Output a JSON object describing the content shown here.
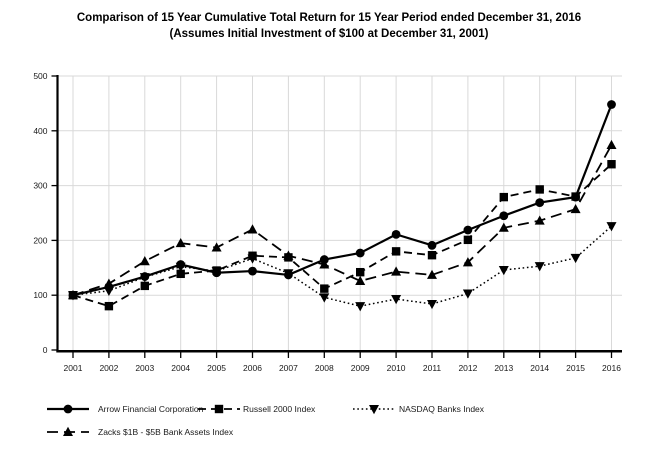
{
  "title": {
    "line1": "Comparison of 15 Year Cumulative Total Return for 15 Year Period ended December 31, 2016",
    "line2": "(Assumes Initial Investment of $100 at December 31, 2001)"
  },
  "chart_data": {
    "type": "line",
    "x": [
      2001,
      2002,
      2003,
      2004,
      2005,
      2006,
      2007,
      2008,
      2009,
      2010,
      2011,
      2012,
      2013,
      2014,
      2015,
      2016
    ],
    "series": [
      {
        "name": "Arrow Financial Corporation",
        "marker": "circle",
        "line": "solid",
        "values": [
          100,
          115,
          134,
          156,
          141,
          144,
          137,
          165,
          177,
          211,
          191,
          219,
          245,
          269,
          279,
          448
        ]
      },
      {
        "name": "Russell 2000 Index",
        "marker": "square",
        "line": "dashed",
        "values": [
          100,
          80,
          117,
          139,
          145,
          172,
          169,
          112,
          142,
          180,
          173,
          201,
          279,
          293,
          280,
          339
        ]
      },
      {
        "name": "NASDAQ Banks Index",
        "marker": "triangle-down",
        "line": "dotted",
        "values": [
          100,
          108,
          133,
          152,
          144,
          167,
          140,
          96,
          80,
          93,
          84,
          103,
          146,
          153,
          168,
          226
        ]
      },
      {
        "name": "Zacks $1B - $5B Bank Assets Index",
        "marker": "triangle-up",
        "line": "long-dash",
        "values": [
          100,
          121,
          162,
          195,
          187,
          220,
          172,
          156,
          126,
          143,
          137,
          160,
          223,
          236,
          257,
          374
        ]
      }
    ],
    "ylim": [
      0,
      500
    ],
    "yticks": [
      0,
      100,
      200,
      300,
      400,
      500
    ],
    "grid": true,
    "legend_position": "bottom",
    "colors": {
      "series": "#000000",
      "grid": "#d9d9d9",
      "background": "#ffffff",
      "text": "#1a1a1a"
    }
  },
  "legend": {
    "items": [
      {
        "label": "Arrow Financial Corporation"
      },
      {
        "label": "Russell 2000 Index"
      },
      {
        "label": "NASDAQ Banks Index"
      },
      {
        "label": "Zacks $1B - $5B Bank Assets Index"
      }
    ]
  }
}
